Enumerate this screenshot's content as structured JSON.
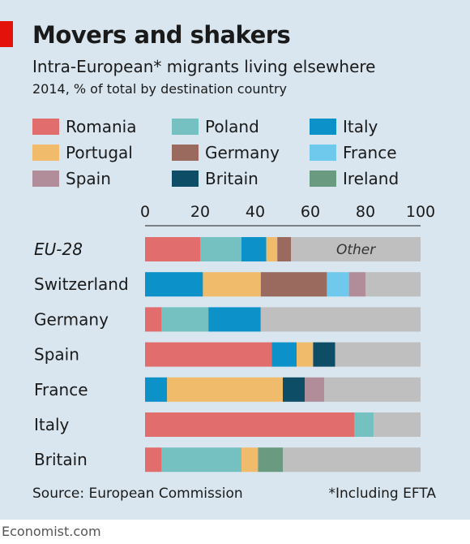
{
  "header": {
    "title": "Movers and shakers",
    "subtitle": "Intra-European* migrants living elsewhere",
    "subsubtitle": "2014, % of total by destination country"
  },
  "footer": {
    "source": "Source: European Commission",
    "note": "*Including EFTA",
    "credit": "Economist.com"
  },
  "colors": {
    "background": "#d9e6ef",
    "accent_tab": "#e3120b",
    "other": "#bfbfbf"
  },
  "chart_data": {
    "type": "bar",
    "orientation": "horizontal",
    "stacked": true,
    "xlim": [
      0,
      100
    ],
    "x_ticks": [
      "0",
      "20",
      "40",
      "60",
      "80",
      "100"
    ],
    "legend_placement": "top",
    "categories": [
      "EU-28",
      "Switzerland",
      "Germany",
      "Spain",
      "France",
      "Italy",
      "Britain"
    ],
    "series": [
      {
        "name": "Romania",
        "color": "#e16d6d",
        "values": [
          20,
          0,
          6,
          46,
          0,
          76,
          6
        ]
      },
      {
        "name": "Portugal",
        "color": "#f0bc6c",
        "values": [
          4,
          21,
          0,
          6,
          42,
          0,
          6
        ]
      },
      {
        "name": "Spain",
        "color": "#b18d9a",
        "values": [
          0,
          6,
          0,
          0,
          7,
          0,
          0
        ]
      },
      {
        "name": "Poland",
        "color": "#75c0c0",
        "values": [
          15,
          0,
          17,
          0,
          0,
          7,
          29
        ]
      },
      {
        "name": "Germany",
        "color": "#9a6a5f",
        "values": [
          5,
          24,
          0,
          0,
          0,
          0,
          0
        ]
      },
      {
        "name": "Britain",
        "color": "#0d4d66",
        "values": [
          0,
          0,
          0,
          8,
          8,
          0,
          0
        ]
      },
      {
        "name": "Italy",
        "color": "#0c92c9",
        "values": [
          9,
          21,
          19,
          9,
          8,
          0,
          0
        ]
      },
      {
        "name": "France",
        "color": "#6fc9ec",
        "values": [
          0,
          8,
          0,
          0,
          0,
          0,
          0
        ]
      },
      {
        "name": "Ireland",
        "color": "#6a9a80",
        "values": [
          0,
          0,
          0,
          0,
          0,
          0,
          9
        ]
      },
      {
        "name": "Other",
        "color": "#bfbfbf",
        "values": [
          47,
          20,
          58,
          31,
          35,
          17,
          50
        ]
      }
    ],
    "stack_orders": [
      [
        "Romania",
        "Poland",
        "Italy",
        "Portugal",
        "Germany",
        "Other"
      ],
      [
        "Italy",
        "Portugal",
        "Germany",
        "France",
        "Spain",
        "Other"
      ],
      [
        "Romania",
        "Poland",
        "Italy",
        "Other"
      ],
      [
        "Romania",
        "Italy",
        "Portugal",
        "Britain",
        "Other"
      ],
      [
        "Italy",
        "Portugal",
        "Britain",
        "Spain",
        "Other"
      ],
      [
        "Romania",
        "Poland",
        "Other"
      ],
      [
        "Romania",
        "Poland",
        "Portugal",
        "Ireland",
        "Other"
      ]
    ],
    "annotation": "Other"
  }
}
